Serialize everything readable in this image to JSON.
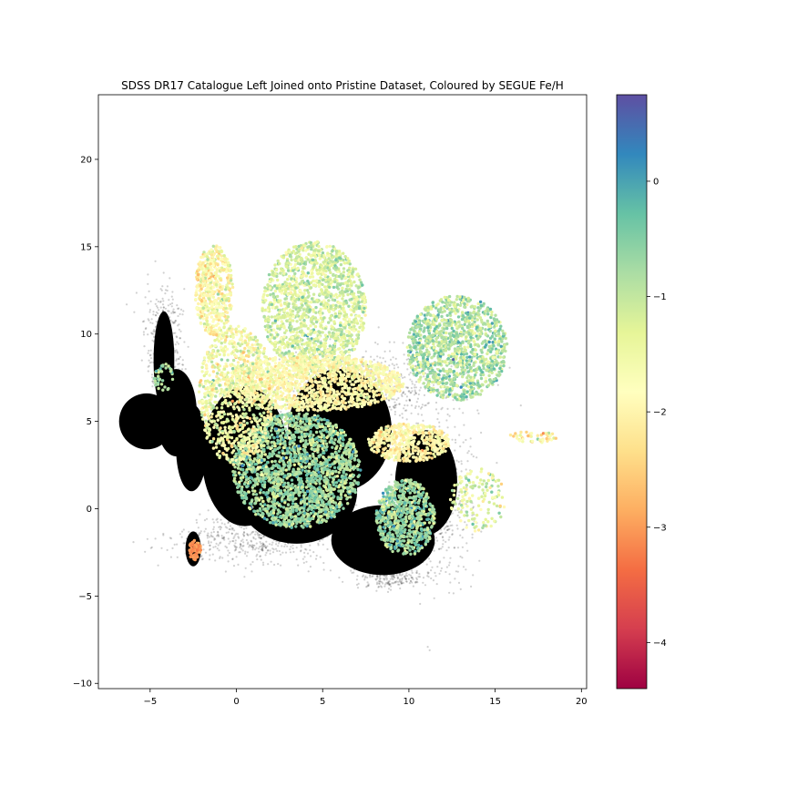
{
  "chart_data": {
    "type": "scatter",
    "title": "SDSS DR17 Catalogue Left Joined onto Pristine Dataset, Coloured by SEGUE Fe/H",
    "xlabel": "",
    "ylabel": "",
    "xlim": [
      -8,
      20.3
    ],
    "ylim": [
      -10.3,
      23.7
    ],
    "x_ticks": [
      -5,
      0,
      5,
      10,
      15,
      20
    ],
    "y_ticks": [
      -10,
      -5,
      0,
      5,
      10,
      15,
      20
    ],
    "grid": false,
    "colorbar": {
      "label": "",
      "colormap": "Spectral",
      "range": [
        -4.4,
        0.75
      ],
      "ticks": [
        -4,
        -3,
        -2,
        -1,
        0
      ],
      "tick_labels": [
        "−4",
        "−3",
        "−2",
        "−1",
        "0"
      ],
      "stops": [
        "#9e0142",
        "#d53e4f",
        "#f46d43",
        "#fdae61",
        "#fee08b",
        "#ffffbf",
        "#e6f598",
        "#abdda4",
        "#66c2a5",
        "#3288bd",
        "#5e4fa2"
      ]
    },
    "series": [
      {
        "role": "background",
        "color": "#000000",
        "regions": [
          {
            "cx": -5.2,
            "cy": 5.0,
            "rx": 1.6,
            "ry": 1.6,
            "n": 0
          },
          {
            "cx": -4.2,
            "cy": 8.5,
            "rx": 0.6,
            "ry": 2.8,
            "n": 0
          },
          {
            "cx": -3.5,
            "cy": 5.5,
            "rx": 1.2,
            "ry": 2.5,
            "n": 0
          },
          {
            "cx": -2.6,
            "cy": 3.5,
            "rx": 0.9,
            "ry": 2.5,
            "n": 0
          },
          {
            "cx": -2.5,
            "cy": -2.3,
            "rx": 0.45,
            "ry": 1.0,
            "n": 0
          },
          {
            "cx": 0.5,
            "cy": 3.0,
            "rx": 2.5,
            "ry": 4.0,
            "n": 0
          },
          {
            "cx": 3.5,
            "cy": 1.0,
            "rx": 3.5,
            "ry": 3.0,
            "n": 0
          },
          {
            "cx": 6.0,
            "cy": 4.5,
            "rx": 3.0,
            "ry": 3.5,
            "n": 0
          },
          {
            "cx": 8.5,
            "cy": -1.8,
            "rx": 3.0,
            "ry": 2.0,
            "n": 0
          },
          {
            "cx": 11.0,
            "cy": 1.5,
            "rx": 1.8,
            "ry": 3.0,
            "n": 0
          }
        ],
        "scatter_regions": [
          {
            "cx": -4.2,
            "cy": 9.5,
            "rx": 0.9,
            "ry": 2.5,
            "n": 350
          },
          {
            "cx": 1.0,
            "cy": -1.8,
            "rx": 4.0,
            "ry": 1.2,
            "n": 500
          },
          {
            "cx": 7.5,
            "cy": 7.0,
            "rx": 4.5,
            "ry": 2.0,
            "n": 700
          },
          {
            "cx": 11.5,
            "cy": 0.5,
            "rx": 1.8,
            "ry": 3.5,
            "n": 600
          },
          {
            "cx": 9.0,
            "cy": -4.0,
            "rx": 2.0,
            "ry": 0.5,
            "n": 200
          }
        ]
      },
      {
        "role": "SEGUE Fe/H",
        "clusters": [
          {
            "cx": 4.5,
            "cy": 11.5,
            "rx": 3.0,
            "ry": 3.8,
            "n": 1500,
            "feh_mean": -1.2,
            "feh_sd": 0.35
          },
          {
            "cx": 12.8,
            "cy": 9.2,
            "rx": 2.9,
            "ry": 3.0,
            "n": 1200,
            "feh_mean": -0.85,
            "feh_sd": 0.4
          },
          {
            "cx": 3.5,
            "cy": 2.2,
            "rx": 3.7,
            "ry": 3.3,
            "n": 1900,
            "feh_mean": -0.75,
            "feh_sd": 0.35
          },
          {
            "cx": 9.8,
            "cy": -0.5,
            "rx": 1.7,
            "ry": 2.2,
            "n": 700,
            "feh_mean": -0.7,
            "feh_sd": 0.35
          },
          {
            "cx": 4.5,
            "cy": 7.2,
            "rx": 5.2,
            "ry": 1.6,
            "n": 1400,
            "feh_mean": -1.85,
            "feh_sd": 0.3
          },
          {
            "cx": 0.0,
            "cy": 6.5,
            "rx": 2.2,
            "ry": 4.0,
            "n": 900,
            "feh_mean": -1.6,
            "feh_sd": 0.45
          },
          {
            "cx": -1.3,
            "cy": 12.5,
            "rx": 1.1,
            "ry": 2.6,
            "n": 500,
            "feh_mean": -1.8,
            "feh_sd": 0.45
          },
          {
            "cx": 10.0,
            "cy": 3.8,
            "rx": 2.4,
            "ry": 1.1,
            "n": 500,
            "feh_mean": -1.9,
            "feh_sd": 0.3
          },
          {
            "cx": 14.0,
            "cy": 0.5,
            "rx": 1.6,
            "ry": 1.8,
            "n": 140,
            "feh_mean": -1.3,
            "feh_sd": 0.5
          },
          {
            "cx": 17.2,
            "cy": 4.1,
            "rx": 1.4,
            "ry": 0.35,
            "n": 45,
            "feh_mean": -2.1,
            "feh_sd": 0.6
          },
          {
            "cx": -2.4,
            "cy": -2.4,
            "rx": 0.35,
            "ry": 0.6,
            "n": 70,
            "feh_mean": -3.1,
            "feh_sd": 0.15
          },
          {
            "cx": -4.2,
            "cy": 7.5,
            "rx": 0.6,
            "ry": 0.8,
            "n": 40,
            "feh_mean": -0.8,
            "feh_sd": 0.3
          }
        ]
      }
    ]
  }
}
